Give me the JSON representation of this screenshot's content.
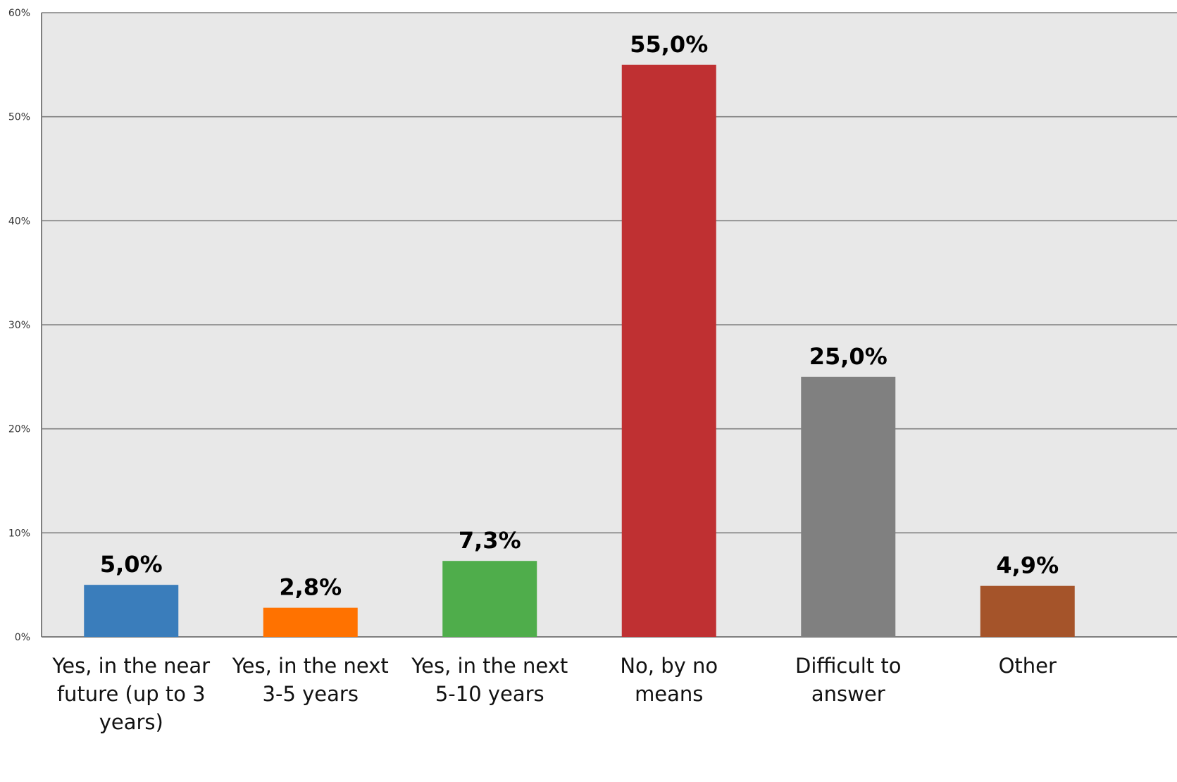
{
  "chart_data": {
    "type": "bar",
    "title": "",
    "xlabel": "",
    "ylabel": "",
    "ylim": [
      0,
      60
    ],
    "yticks": [
      0,
      10,
      20,
      30,
      40,
      50,
      60
    ],
    "ytick_labels": [
      "0%",
      "10%",
      "20%",
      "30%",
      "40%",
      "50%",
      "60%"
    ],
    "grid": true,
    "legend": "none",
    "categories": [
      [
        "Yes, in the near",
        "future (up to 3",
        "years)"
      ],
      [
        "Yes, in the next",
        "3-5 years"
      ],
      [
        "Yes, in the next",
        "5-10 years"
      ],
      [
        "No, by no",
        "means"
      ],
      [
        "Difficult to",
        "answer"
      ],
      [
        "Other"
      ]
    ],
    "values": [
      5.0,
      2.8,
      7.3,
      55.0,
      25.0,
      4.9
    ],
    "value_labels": [
      "5,0%",
      "2,8%",
      "7,3%",
      "55,0%",
      "25,0%",
      "4,9%"
    ],
    "colors": [
      "#3a7dbb",
      "#ff7200",
      "#4fad4b",
      "#bf3032",
      "#808080",
      "#a5542a"
    ],
    "plot_background": "#e8e8e8",
    "grid_color": "#7f7f7f"
  }
}
